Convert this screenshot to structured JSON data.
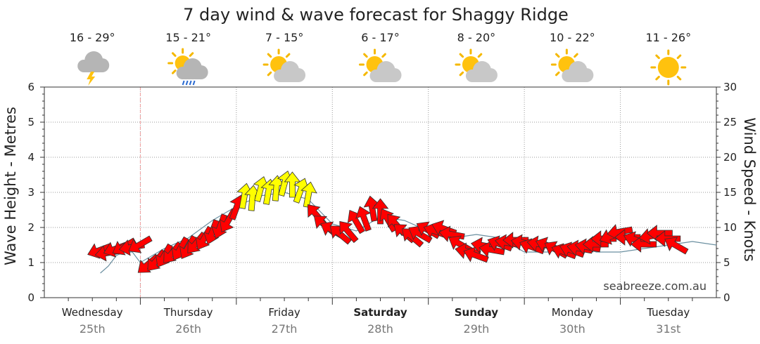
{
  "chart_data": {
    "type": "line",
    "title": "7 day wind & wave forecast for Shaggy Ridge",
    "ylabel_left": "Wave Height - Metres",
    "ylabel_right": "Wind Speed - Knots",
    "ylim_left": [
      0,
      6
    ],
    "ylim_right": [
      0,
      30
    ],
    "y_ticks_left": [
      "0",
      "1",
      "2",
      "3",
      "4",
      "5",
      "6"
    ],
    "y_ticks_right": [
      "0",
      "5",
      "10",
      "15",
      "20",
      "25",
      "30"
    ],
    "days": [
      {
        "name": "Wednesday",
        "date": "25th",
        "bold": false,
        "temp": "16 - 29°",
        "icon": "storm-cloud-icon"
      },
      {
        "name": "Thursday",
        "date": "26th",
        "bold": false,
        "temp": "15 - 21°",
        "icon": "sun-cloud-rain-icon"
      },
      {
        "name": "Friday",
        "date": "27th",
        "bold": false,
        "temp": "7 - 15°",
        "icon": "partly-cloudy-icon"
      },
      {
        "name": "Saturday",
        "date": "28th",
        "bold": true,
        "temp": "6 - 17°",
        "icon": "partly-cloudy-icon"
      },
      {
        "name": "Sunday",
        "date": "29th",
        "bold": true,
        "temp": "8 - 20°",
        "icon": "partly-cloudy-icon"
      },
      {
        "name": "Monday",
        "date": "30th",
        "bold": false,
        "temp": "10 - 22°",
        "icon": "partly-cloudy-icon"
      },
      {
        "name": "Tuesday",
        "date": "31st",
        "bold": false,
        "temp": "11 - 26°",
        "icon": "sun-icon"
      }
    ],
    "grid": true,
    "now_marker_hours": 24,
    "wave_series": {
      "name": "Wave height",
      "hours": [
        14,
        16,
        18,
        20,
        22,
        24,
        30,
        36,
        42,
        48,
        54,
        60,
        66,
        72,
        78,
        84,
        90,
        96,
        102,
        108,
        114,
        120,
        126,
        132,
        138,
        144,
        150,
        156,
        162,
        168
      ],
      "values": [
        0.7,
        0.9,
        1.2,
        1.3,
        1.3,
        1.0,
        1.4,
        1.7,
        2.2,
        2.6,
        2.9,
        3.0,
        2.8,
        2.1,
        1.9,
        2.3,
        2.2,
        1.9,
        1.7,
        1.8,
        1.7,
        1.3,
        1.3,
        1.5,
        1.3,
        1.3,
        1.4,
        1.5,
        1.6,
        1.5
      ]
    },
    "wind_series": {
      "name": "Wind",
      "hours_start": 14,
      "hours_step": 2,
      "speed_knots": [
        6.8,
        6.4,
        7.0,
        7.3,
        7.2,
        7.6,
        4.8,
        5.3,
        6.0,
        6.4,
        7.0,
        7.2,
        7.8,
        8.5,
        9.4,
        10.2,
        11.0,
        12.8,
        14.4,
        14.1,
        15.4,
        15.0,
        15.5,
        16.2,
        16.0,
        15.2,
        14.6,
        11.8,
        10.4,
        9.6,
        9.0,
        9.4,
        10.8,
        11.2,
        12.6,
        12.2,
        11.0,
        10.4,
        9.2,
        8.6,
        9.0,
        9.6,
        9.4,
        9.8,
        9.0,
        7.6,
        6.6,
        6.0,
        7.4,
        6.8,
        7.6,
        7.8,
        8.2,
        7.8,
        7.2,
        7.6,
        7.4,
        6.8,
        6.5,
        6.7,
        7.0,
        7.2,
        7.6,
        8.4,
        8.8,
        9.4,
        8.6,
        8.2,
        7.6,
        8.8,
        9.2,
        8.4,
        7.4
      ],
      "direction_deg": [
        70,
        80,
        70,
        60,
        80,
        60,
        50,
        40,
        30,
        40,
        30,
        30,
        40,
        30,
        20,
        20,
        30,
        200,
        190,
        185,
        195,
        190,
        185,
        195,
        180,
        200,
        190,
        140,
        130,
        120,
        130,
        140,
        150,
        160,
        170,
        180,
        150,
        140,
        130,
        130,
        120,
        120,
        110,
        110,
        100,
        120,
        100,
        110,
        100,
        100,
        110,
        100,
        90,
        100,
        110,
        100,
        110,
        120,
        110,
        110,
        100,
        100,
        90,
        90,
        70,
        80,
        90,
        110,
        90,
        80,
        90,
        90,
        120
      ],
      "color_breaks": {
        "red_below": 13,
        "yellow_at_or_above": 13
      },
      "colors": {
        "low": "#ff0000",
        "high": "#ffff00"
      }
    }
  },
  "watermark": "seabreeze.com.au"
}
